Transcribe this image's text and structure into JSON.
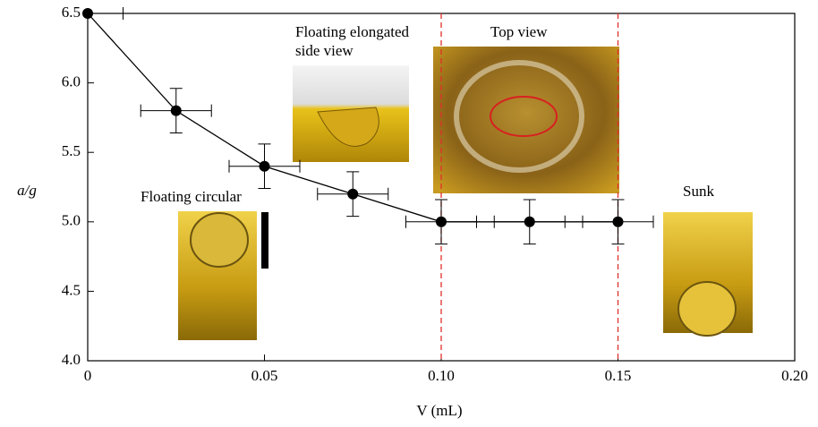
{
  "chart_data": {
    "type": "line",
    "x_label": "V (mL)",
    "y_label": "a/g",
    "x": [
      0,
      0.025,
      0.05,
      0.075,
      0.1,
      0.125,
      0.15
    ],
    "values": [
      6.5,
      5.8,
      5.4,
      5.2,
      5.0,
      5.0,
      5.0
    ],
    "xerr": [
      0.01,
      0.01,
      0.01,
      0.01,
      0.01,
      0.01,
      0.01
    ],
    "yerr": [
      null,
      0.16,
      0.16,
      0.16,
      0.16,
      0.16,
      0.16
    ],
    "color": "#000000",
    "xlim": [
      0,
      0.2
    ],
    "ylim": [
      4.0,
      6.5
    ],
    "xticks": [
      0,
      0.05,
      {
        "value": 0.1,
        "label": "0.10"
      },
      0.15,
      {
        "value": 0.2,
        "label": "0.20"
      }
    ],
    "yticks": [
      {
        "value": 4,
        "label": "4.0"
      },
      4.5,
      {
        "value": 5,
        "label": "5.0"
      },
      5.5,
      {
        "value": 6,
        "label": "6.0"
      },
      6.5
    ],
    "vlines": [
      0.1,
      0.15
    ],
    "vline_color": "#e0302a",
    "annotations": [
      "Floating circular",
      "Floating elongated",
      "side view",
      "Top view",
      "Sunk"
    ]
  }
}
